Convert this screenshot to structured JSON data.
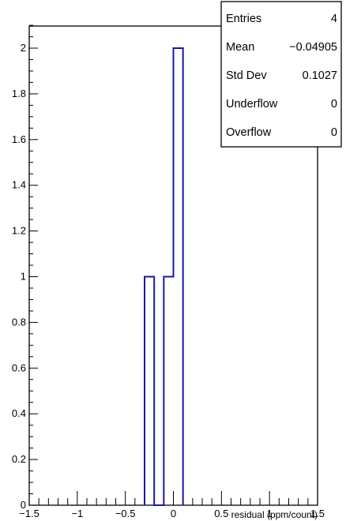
{
  "chart_data": {
    "type": "histogram",
    "xlabel": "residual (ppm/count)",
    "ylabel": "",
    "xlim": [
      -1.5,
      1.5
    ],
    "ylim": [
      0,
      2.1
    ],
    "xticks": [
      "−1.5",
      "−1",
      "−0.5",
      "0",
      "0.5",
      "1",
      "1.5"
    ],
    "yticks": [
      "0",
      "0.2",
      "0.4",
      "0.6",
      "0.8",
      "1",
      "1.2",
      "1.4",
      "1.6",
      "1.8",
      "2"
    ],
    "bins": [
      {
        "low": -0.3,
        "high": -0.2,
        "count": 1
      },
      {
        "low": -0.2,
        "high": -0.1,
        "count": 0
      },
      {
        "low": -0.1,
        "high": 0.0,
        "count": 1
      },
      {
        "low": 0.0,
        "high": 0.1,
        "count": 2
      }
    ],
    "line_color": "#1a1aa0",
    "stats": [
      {
        "label": "Entries",
        "value": "4"
      },
      {
        "label": "Mean",
        "value": "−0.04905"
      },
      {
        "label": "Std Dev",
        "value": "0.1027"
      },
      {
        "label": "Underflow",
        "value": "0"
      },
      {
        "label": "Overflow",
        "value": "0"
      }
    ]
  }
}
